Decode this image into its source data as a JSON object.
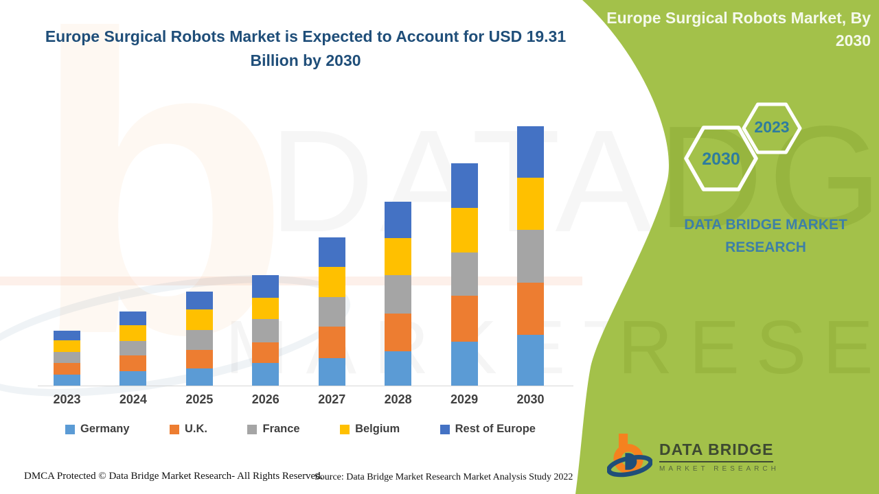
{
  "page": {
    "chart_title": "Europe Surgical Robots Market is Expected to Account for USD 19.31 Billion by 2030"
  },
  "panel": {
    "title": "Europe Surgical Robots Market, By 2030",
    "background_color": "#A3C14A",
    "hexagons": [
      {
        "label": "2023"
      },
      {
        "label": "2030"
      }
    ],
    "brand": "DATA BRIDGE MARKET RESEARCH",
    "brand_color": "#3D7FA7"
  },
  "logo": {
    "name": "DATA BRIDGE",
    "sub": "MARKET RESEARCH",
    "orange": "#F5821F",
    "blue": "#1F4E79"
  },
  "footer": {
    "dmca": "DMCA Protected © Data Bridge Market Research- All Rights Reserved.",
    "source": "Source: Data Bridge Market Research Market Analysis Study 2022"
  },
  "chart_data": {
    "type": "bar",
    "stacked": true,
    "title": "Europe Surgical Robots Market is Expected to Account for USD 19.31 Billion by 2030",
    "value_unit": "USD Billion",
    "categories": [
      "2023",
      "2024",
      "2025",
      "2026",
      "2027",
      "2028",
      "2029",
      "2030"
    ],
    "series": [
      {
        "name": "Germany",
        "color": "#5B9BD5",
        "values": [
          0.83,
          1.07,
          1.28,
          1.69,
          2.04,
          2.54,
          3.25,
          3.8
        ]
      },
      {
        "name": "U.K.",
        "color": "#ED7D31",
        "values": [
          0.88,
          1.15,
          1.36,
          1.55,
          2.35,
          2.82,
          3.4,
          3.88
        ]
      },
      {
        "name": "France",
        "color": "#A5A5A5",
        "values": [
          0.84,
          1.09,
          1.48,
          1.76,
          2.17,
          2.88,
          3.19,
          3.91
        ]
      },
      {
        "name": "Belgium",
        "color": "#FFC000",
        "values": [
          0.85,
          1.17,
          1.51,
          1.59,
          2.24,
          2.76,
          3.33,
          3.88
        ]
      },
      {
        "name": "Rest of Europe",
        "color": "#4472C4",
        "values": [
          0.69,
          1.03,
          1.34,
          1.69,
          2.21,
          2.72,
          3.31,
          3.84
        ]
      }
    ],
    "totals": [
      4.09,
      5.51,
      6.97,
      8.28,
      11.01,
      13.72,
      16.48,
      19.31
    ],
    "highlight_value": "USD 19.31 Billion by 2030",
    "ylim": [
      0,
      20
    ],
    "y_axis_visible": false,
    "gridlines": false,
    "legend_position": "bottom",
    "values_estimated_from_pixels": true
  }
}
